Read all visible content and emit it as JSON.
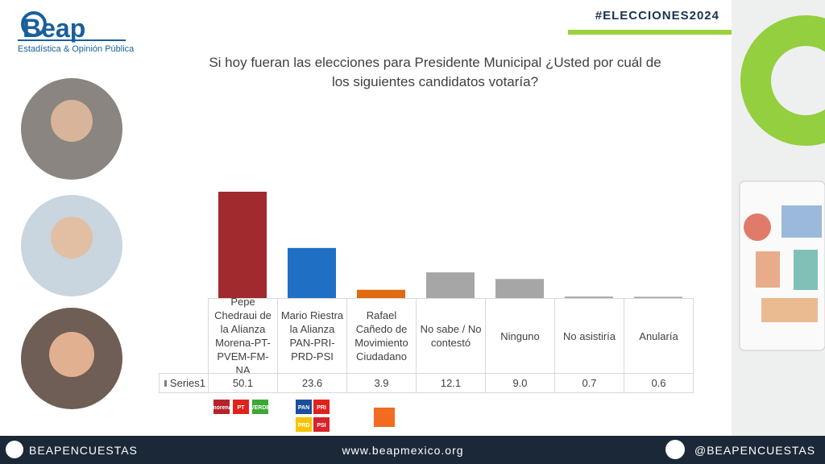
{
  "header": {
    "logo": "Beap",
    "tagline": "Estadística & Opinión Pública",
    "hashtag": "#ELECCIONES2024"
  },
  "chart_data": {
    "type": "bar",
    "title": "Si hoy fueran las elecciones para Presidente Municipal ¿Usted por cuál de los siguientes candidatos votaría?",
    "categories": [
      "Pepe Chedraui de la Alianza Morena-PT-PVEM-FM-NA",
      "Mario Riestra la Alianza PAN-PRI-PRD-PSI",
      "Rafael Cañedo de Movimiento Ciudadano",
      "No sabe / No contestó",
      "Ninguno",
      "No asistiría",
      "Anularía"
    ],
    "series": [
      {
        "name": "Series1",
        "legend_color": "#7f7f7f",
        "colors": [
          "#a12a2e",
          "#1f6fc4",
          "#e06a12",
          "#a6a6a6",
          "#a6a6a6",
          "#a6a6a6",
          "#a6a6a6"
        ],
        "values": [
          50.1,
          23.6,
          3.9,
          12.1,
          9.0,
          0.7,
          0.6
        ],
        "value_labels": [
          "50.1",
          "23.6",
          "3.9",
          "12.1",
          "9.0",
          "0.7",
          "0.6"
        ]
      }
    ]
  },
  "parties": [
    [
      "morena",
      "PT",
      "VERDE"
    ],
    [
      "PAN",
      "PRI",
      "PRD",
      "PSI"
    ]
  ],
  "footer": {
    "facebook": "BEAPENCUESTAS",
    "website": "www.beapmexico.org",
    "twitter": "@BEAPENCUESTAS"
  }
}
